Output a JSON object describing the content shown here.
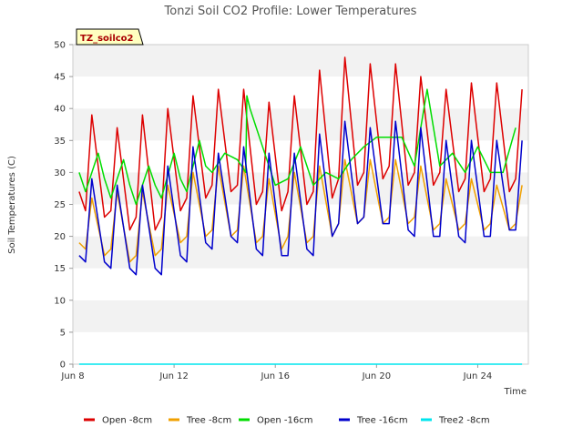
{
  "chart_data": {
    "type": "line",
    "title": "Tonzi Soil CO2 Profile: Lower Temperatures",
    "xlabel": "Time",
    "ylabel": "Soil Temperatures (C)",
    "badge": "TZ_soilco2",
    "xlim": [
      "2024-06-08",
      "2024-06-26"
    ],
    "ylim": [
      0,
      50
    ],
    "x_ticks": [
      {
        "date": "2024-06-08",
        "label": "Jun 8"
      },
      {
        "date": "2024-06-12",
        "label": "Jun 12"
      },
      {
        "date": "2024-06-16",
        "label": "Jun 16"
      },
      {
        "date": "2024-06-20",
        "label": "Jun 20"
      },
      {
        "date": "2024-06-24",
        "label": "Jun 24"
      }
    ],
    "y_ticks": [
      0,
      5,
      10,
      15,
      20,
      25,
      30,
      35,
      40,
      45,
      50
    ],
    "grid": "horizontal bands",
    "legend_position": "bottom",
    "series": [
      {
        "name": "Open -8cm",
        "color": "#dd0000",
        "x": [
          "2024-06-08T06:00",
          "2024-06-08T12:00",
          "2024-06-08T18:00",
          "2024-06-09T06:00",
          "2024-06-09T12:00",
          "2024-06-09T18:00",
          "2024-06-10T06:00",
          "2024-06-10T12:00",
          "2024-06-10T18:00",
          "2024-06-11T06:00",
          "2024-06-11T12:00",
          "2024-06-11T18:00",
          "2024-06-12T06:00",
          "2024-06-12T12:00",
          "2024-06-12T18:00",
          "2024-06-13T06:00",
          "2024-06-13T12:00",
          "2024-06-13T18:00",
          "2024-06-14T06:00",
          "2024-06-14T12:00",
          "2024-06-14T18:00",
          "2024-06-15T06:00",
          "2024-06-15T12:00",
          "2024-06-15T18:00",
          "2024-06-16T06:00",
          "2024-06-16T12:00",
          "2024-06-16T18:00",
          "2024-06-17T06:00",
          "2024-06-17T12:00",
          "2024-06-17T18:00",
          "2024-06-18T06:00",
          "2024-06-18T12:00",
          "2024-06-18T18:00",
          "2024-06-19T06:00",
          "2024-06-19T12:00",
          "2024-06-19T18:00",
          "2024-06-20T06:00",
          "2024-06-20T12:00",
          "2024-06-20T18:00",
          "2024-06-21T06:00",
          "2024-06-21T12:00",
          "2024-06-21T18:00",
          "2024-06-22T06:00",
          "2024-06-22T12:00",
          "2024-06-22T18:00",
          "2024-06-23T06:00",
          "2024-06-23T12:00",
          "2024-06-23T18:00",
          "2024-06-24T06:00",
          "2024-06-24T12:00",
          "2024-06-24T18:00",
          "2024-06-25T06:00",
          "2024-06-25T12:00",
          "2024-06-25T18:00"
        ],
        "y": [
          27,
          24,
          39,
          23,
          24,
          37,
          21,
          23,
          39,
          21,
          23,
          40,
          24,
          26,
          42,
          26,
          28,
          43,
          27,
          28,
          43,
          25,
          27,
          41,
          24,
          27,
          42,
          25,
          27,
          46,
          26,
          29,
          48,
          28,
          30,
          47,
          29,
          31,
          47,
          28,
          30,
          45,
          28,
          30,
          43,
          27,
          29,
          44,
          27,
          29,
          44,
          27,
          29,
          43
        ]
      },
      {
        "name": "Tree -8cm",
        "color": "#f0a000",
        "x": [
          "2024-06-08T06:00",
          "2024-06-08T12:00",
          "2024-06-08T18:00",
          "2024-06-09T06:00",
          "2024-06-09T12:00",
          "2024-06-09T18:00",
          "2024-06-10T06:00",
          "2024-06-10T12:00",
          "2024-06-10T18:00",
          "2024-06-11T06:00",
          "2024-06-11T12:00",
          "2024-06-11T18:00",
          "2024-06-12T06:00",
          "2024-06-12T12:00",
          "2024-06-12T18:00",
          "2024-06-13T06:00",
          "2024-06-13T12:00",
          "2024-06-13T18:00",
          "2024-06-14T06:00",
          "2024-06-14T12:00",
          "2024-06-14T18:00",
          "2024-06-15T06:00",
          "2024-06-15T12:00",
          "2024-06-15T18:00",
          "2024-06-16T06:00",
          "2024-06-16T12:00",
          "2024-06-16T18:00",
          "2024-06-17T06:00",
          "2024-06-17T12:00",
          "2024-06-17T18:00",
          "2024-06-18T06:00",
          "2024-06-18T12:00",
          "2024-06-18T18:00",
          "2024-06-19T06:00",
          "2024-06-19T12:00",
          "2024-06-19T18:00",
          "2024-06-20T06:00",
          "2024-06-20T12:00",
          "2024-06-20T18:00",
          "2024-06-21T06:00",
          "2024-06-21T12:00",
          "2024-06-21T18:00",
          "2024-06-22T06:00",
          "2024-06-22T12:00",
          "2024-06-22T18:00",
          "2024-06-23T06:00",
          "2024-06-23T12:00",
          "2024-06-23T18:00",
          "2024-06-24T06:00",
          "2024-06-24T12:00",
          "2024-06-24T18:00",
          "2024-06-25T06:00",
          "2024-06-25T12:00",
          "2024-06-25T18:00"
        ],
        "y": [
          19,
          18,
          26,
          17,
          18,
          27,
          16,
          17,
          27,
          17,
          18,
          28,
          19,
          20,
          30,
          20,
          21,
          31,
          20,
          21,
          31,
          19,
          20,
          29,
          18,
          20,
          30,
          19,
          20,
          31,
          20,
          22,
          32,
          22,
          23,
          32,
          22,
          23,
          32,
          22,
          23,
          31,
          21,
          22,
          29,
          21,
          22,
          29,
          21,
          22,
          28,
          21,
          22,
          28
        ]
      },
      {
        "name": "Open -16cm",
        "color": "#00dd00",
        "x": [
          "2024-06-08T06:00",
          "2024-06-08T12:00",
          "2024-06-09T00:00",
          "2024-06-09T06:00",
          "2024-06-09T12:00",
          "2024-06-10T00:00",
          "2024-06-10T06:00",
          "2024-06-10T12:00",
          "2024-06-11T00:00",
          "2024-06-11T06:00",
          "2024-06-11T12:00",
          "2024-06-12T00:00",
          "2024-06-12T06:00",
          "2024-06-12T12:00",
          "2024-06-13T00:00",
          "2024-06-13T06:00",
          "2024-06-13T12:00",
          "2024-06-14T00:00",
          "2024-06-14T12:00",
          "2024-06-14T20:00",
          "2024-06-14T21:00",
          "2024-06-15T00:00",
          "2024-06-15T12:00",
          "2024-06-16T00:00",
          "2024-06-16T12:00",
          "2024-06-17T00:00",
          "2024-06-17T12:00",
          "2024-06-18T00:00",
          "2024-06-18T12:00",
          "2024-06-19T00:00",
          "2024-06-19T12:00",
          "2024-06-20T00:00",
          "2024-06-20T12:00",
          "2024-06-21T00:00",
          "2024-06-21T12:00",
          "2024-06-21T18:00",
          "2024-06-22T00:00",
          "2024-06-22T12:00",
          "2024-06-23T00:00",
          "2024-06-23T12:00",
          "2024-06-24T00:00",
          "2024-06-24T12:00",
          "2024-06-25T00:00",
          "2024-06-25T12:00"
        ],
        "y": [
          30,
          27,
          33,
          29,
          26,
          32,
          28,
          25,
          31,
          28,
          26,
          33,
          29,
          27,
          35,
          31,
          30,
          33,
          32,
          30,
          42,
          40,
          34,
          28,
          29,
          34,
          28,
          30,
          29,
          32,
          34,
          35.5,
          35.5,
          35.5,
          31,
          37,
          43,
          31,
          33,
          30,
          34,
          30,
          30,
          37
        ]
      },
      {
        "name": "Tree -16cm",
        "color": "#0000cc",
        "x": [
          "2024-06-08T06:00",
          "2024-06-08T12:00",
          "2024-06-08T18:00",
          "2024-06-09T06:00",
          "2024-06-09T12:00",
          "2024-06-09T18:00",
          "2024-06-10T06:00",
          "2024-06-10T12:00",
          "2024-06-10T18:00",
          "2024-06-11T06:00",
          "2024-06-11T12:00",
          "2024-06-11T18:00",
          "2024-06-12T06:00",
          "2024-06-12T12:00",
          "2024-06-12T18:00",
          "2024-06-13T06:00",
          "2024-06-13T12:00",
          "2024-06-13T18:00",
          "2024-06-14T06:00",
          "2024-06-14T12:00",
          "2024-06-14T18:00",
          "2024-06-15T06:00",
          "2024-06-15T12:00",
          "2024-06-15T18:00",
          "2024-06-16T06:00",
          "2024-06-16T12:00",
          "2024-06-16T18:00",
          "2024-06-17T06:00",
          "2024-06-17T12:00",
          "2024-06-17T18:00",
          "2024-06-18T06:00",
          "2024-06-18T12:00",
          "2024-06-18T18:00",
          "2024-06-19T06:00",
          "2024-06-19T12:00",
          "2024-06-19T18:00",
          "2024-06-20T06:00",
          "2024-06-20T12:00",
          "2024-06-20T18:00",
          "2024-06-21T06:00",
          "2024-06-21T12:00",
          "2024-06-21T18:00",
          "2024-06-22T06:00",
          "2024-06-22T12:00",
          "2024-06-22T18:00",
          "2024-06-23T06:00",
          "2024-06-23T12:00",
          "2024-06-23T18:00",
          "2024-06-24T06:00",
          "2024-06-24T12:00",
          "2024-06-24T18:00",
          "2024-06-25T06:00",
          "2024-06-25T12:00",
          "2024-06-25T18:00"
        ],
        "y": [
          17,
          16,
          29,
          16,
          15,
          28,
          15,
          14,
          28,
          15,
          14,
          31,
          17,
          16,
          34,
          19,
          18,
          33,
          20,
          19,
          34,
          18,
          17,
          33,
          17,
          17,
          33,
          18,
          17,
          36,
          20,
          22,
          38,
          22,
          23,
          37,
          22,
          22,
          38,
          21,
          20,
          37,
          20,
          20,
          35,
          20,
          19,
          35,
          20,
          20,
          35,
          21,
          21,
          35
        ]
      },
      {
        "name": "Tree2 -8cm",
        "color": "#00e5ee",
        "x": [
          "2024-06-08T06:00",
          "2024-06-25T18:00"
        ],
        "y": [
          0,
          0
        ]
      }
    ]
  }
}
